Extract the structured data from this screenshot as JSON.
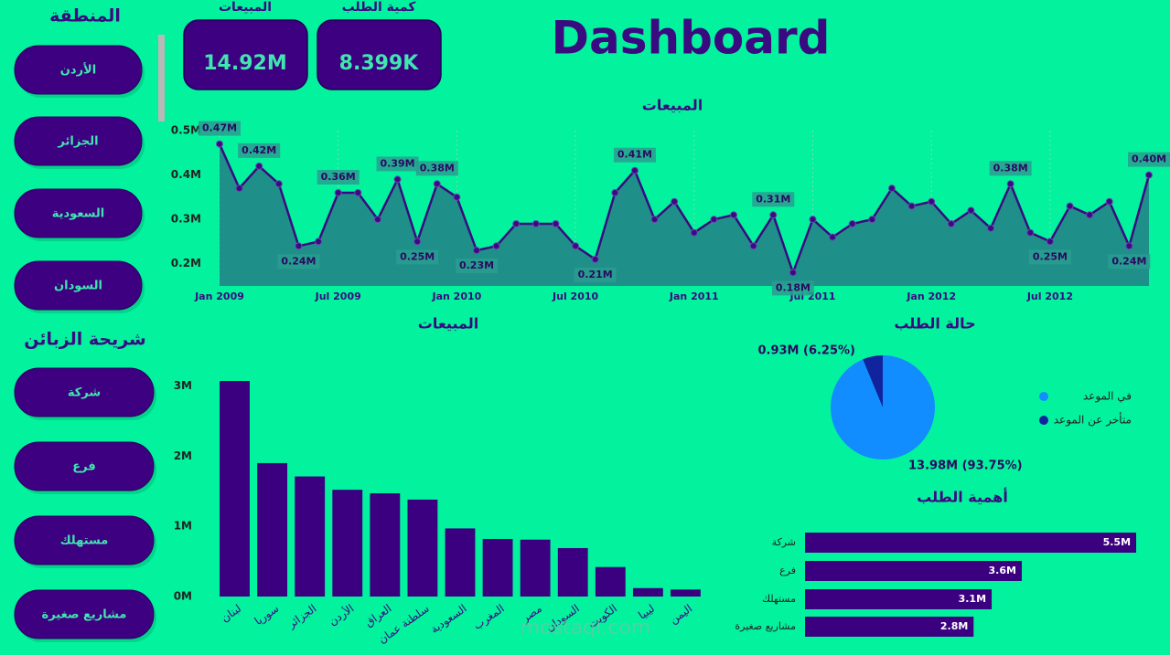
{
  "title": "Dashboard",
  "slicers": [
    {
      "title": "المنطقة",
      "items": [
        "الأردن",
        "الجزائر",
        "السعودية",
        "السودان"
      ]
    },
    {
      "title": "شريحة الزبائن",
      "items": [
        "شركة",
        "فرع",
        "مستهلك",
        "مشاريع صغيرة"
      ]
    }
  ],
  "kpis": [
    {
      "label": "المبيعات",
      "value": "14.92M"
    },
    {
      "label": "كمية الطلب",
      "value": "8.399K"
    }
  ],
  "watermark": "mostaql.com",
  "chart_data": [
    {
      "type": "area",
      "title": "المبيعات",
      "color": "#3a0a80",
      "fill": "#1f8f8a",
      "categories": [
        "Jan 2009",
        null,
        null,
        null,
        null,
        null,
        "Jul 2009",
        null,
        null,
        null,
        null,
        null,
        "Jan 2010",
        null,
        null,
        null,
        null,
        null,
        "Jul 2010",
        null,
        null,
        null,
        null,
        null,
        "Jan 2011",
        null,
        null,
        null,
        null,
        null,
        "Jul 2011",
        null,
        null,
        null,
        null,
        null,
        "Jan 2012",
        null,
        null,
        null,
        null,
        null,
        "Jul 2012",
        null,
        null,
        null,
        null,
        null
      ],
      "values": [
        0.47,
        0.37,
        0.42,
        0.38,
        0.24,
        0.25,
        0.36,
        0.36,
        0.3,
        0.39,
        0.25,
        0.38,
        0.35,
        0.23,
        0.24,
        0.29,
        0.29,
        0.29,
        0.24,
        0.21,
        0.36,
        0.41,
        0.3,
        0.34,
        0.27,
        0.3,
        0.31,
        0.24,
        0.31,
        0.18,
        0.3,
        0.26,
        0.29,
        0.3,
        0.37,
        0.33,
        0.34,
        0.29,
        0.32,
        0.28,
        0.38,
        0.27,
        0.25,
        0.33,
        0.31,
        0.34,
        0.24,
        0.4
      ],
      "value_labels": [
        "0.47M",
        null,
        "0.42M",
        null,
        "0.24M",
        null,
        "0.36M",
        null,
        null,
        "0.39M",
        "0.25M",
        "0.38M",
        null,
        "0.23M",
        null,
        null,
        null,
        null,
        null,
        "0.21M",
        null,
        "0.41M",
        null,
        null,
        null,
        null,
        null,
        null,
        "0.31M",
        "0.18M",
        null,
        null,
        null,
        null,
        null,
        null,
        null,
        null,
        null,
        null,
        "0.38M",
        null,
        "0.25M",
        null,
        null,
        null,
        "0.24M",
        "0.40M"
      ],
      "ylim": [
        0.15,
        0.5
      ],
      "yticks": [
        {
          "value": 0.2,
          "label": "0.2M"
        },
        {
          "value": 0.3,
          "label": "0.3M"
        },
        {
          "value": 0.4,
          "label": "0.4M"
        },
        {
          "value": 0.5,
          "label": "0.5M"
        }
      ]
    },
    {
      "type": "bar",
      "title": "المبيعات",
      "color": "#3b0080",
      "categories": [
        "لبنان",
        "سوريا",
        "الجزائر",
        "الأردن",
        "العراق",
        "سلطنة عمان",
        "السعودية",
        "المغرب",
        "مصر",
        "السودان",
        "الكويت",
        "ليبيا",
        "اليمن"
      ],
      "values": [
        3.07,
        1.9,
        1.71,
        1.52,
        1.47,
        1.38,
        0.97,
        0.82,
        0.81,
        0.69,
        0.42,
        0.12,
        0.1
      ],
      "ylim": [
        0,
        3.2
      ],
      "yticks": [
        {
          "value": 0,
          "label": "0M"
        },
        {
          "value": 1,
          "label": "1M"
        },
        {
          "value": 2,
          "label": "2M"
        },
        {
          "value": 3,
          "label": "3M"
        }
      ]
    },
    {
      "type": "pie",
      "title": "حالة الطلب",
      "legend": "right",
      "categories": [
        "في الموعد",
        "متأخر عن الموعد"
      ],
      "colors": [
        "#118dff",
        "#12239e"
      ],
      "values": [
        13.98,
        0.93
      ],
      "value_labels": [
        "13.98M (93.75%)",
        "0.93M (6.25%)"
      ]
    },
    {
      "type": "hbar",
      "title": "أهمية الطلب",
      "color": "#3b0080",
      "categories": [
        "شركة",
        "فرع",
        "مستهلك",
        "مشاريع صغيرة"
      ],
      "values": [
        5.5,
        3.6,
        3.1,
        2.8
      ],
      "value_labels": [
        "5.5M",
        "3.6M",
        "3.1M",
        "2.8M"
      ],
      "xlim": [
        0,
        5.6
      ]
    }
  ]
}
